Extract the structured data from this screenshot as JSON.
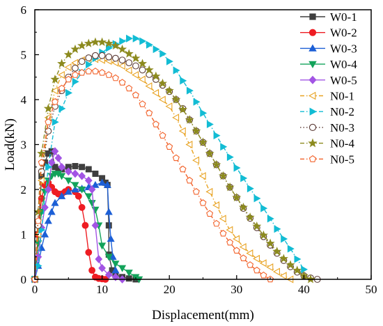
{
  "chart_data": {
    "type": "line",
    "xlabel": "Displacement(mm)",
    "ylabel": "Load(kN)",
    "xlim": [
      0,
      50
    ],
    "ylim": [
      0,
      6
    ],
    "xticks": [
      "0",
      "10",
      "20",
      "30",
      "40",
      "50"
    ],
    "yticks": [
      "0",
      "1",
      "2",
      "3",
      "4",
      "5",
      "6"
    ],
    "grid": false,
    "legend_position": "top-right",
    "series": [
      {
        "name": "W0-1",
        "color": "#3f3f3f",
        "marker": "square",
        "filled": true,
        "dash": "solid",
        "x": [
          0,
          0.5,
          1,
          1.5,
          2,
          2.5,
          3,
          3.5,
          4,
          5,
          6,
          7,
          8,
          9,
          10,
          10.5,
          10.8,
          11,
          11,
          11.5,
          12,
          13,
          14,
          15
        ],
        "y": [
          0,
          1.0,
          2.3,
          2.6,
          2.8,
          2.85,
          2.5,
          2.45,
          2.45,
          2.5,
          2.52,
          2.5,
          2.45,
          2.35,
          2.25,
          2.15,
          2.1,
          1.2,
          0.55,
          0.2,
          0.1,
          0.05,
          0.02,
          0
        ]
      },
      {
        "name": "W0-2",
        "color": "#ee1d23",
        "marker": "circle",
        "filled": true,
        "dash": "solid",
        "x": [
          0,
          0.5,
          1,
          1.5,
          2,
          2.5,
          3,
          3.5,
          4,
          4.5,
          5,
          6,
          6.5,
          7,
          7.5,
          8,
          8.5,
          9,
          9.5,
          10,
          10.5
        ],
        "y": [
          0,
          1.0,
          1.8,
          2.1,
          2.15,
          2.05,
          1.95,
          1.9,
          1.9,
          1.95,
          2.0,
          1.95,
          1.85,
          1.6,
          1.2,
          0.6,
          0.2,
          0.05,
          0.02,
          0.01,
          0
        ]
      },
      {
        "name": "W0-3",
        "color": "#1c5fd6",
        "marker": "triangle-up",
        "filled": true,
        "dash": "solid",
        "x": [
          0,
          0.5,
          1,
          1.5,
          2,
          2.5,
          3,
          4,
          5,
          6,
          7,
          8,
          9,
          10,
          10.8,
          11,
          11.3,
          11.6,
          12
        ],
        "y": [
          0,
          0.3,
          0.7,
          1.0,
          1.3,
          1.5,
          1.7,
          1.85,
          1.95,
          2.0,
          2.02,
          2.05,
          2.1,
          2.15,
          2.1,
          1.5,
          0.9,
          0.5,
          0.2
        ]
      },
      {
        "name": "W0-4",
        "color": "#12a35a",
        "marker": "triangle-down",
        "filled": true,
        "dash": "solid",
        "x": [
          0,
          0.5,
          1,
          1.5,
          2,
          2.5,
          3,
          3.5,
          4,
          5,
          6,
          7,
          8,
          8.5,
          9,
          9.5,
          10,
          11,
          12,
          13,
          14,
          15,
          15.5
        ],
        "y": [
          0,
          0.8,
          1.5,
          1.95,
          2.2,
          2.3,
          2.35,
          2.35,
          2.3,
          2.2,
          2.1,
          2.0,
          1.85,
          1.7,
          1.55,
          1.2,
          0.75,
          0.5,
          0.35,
          0.25,
          0.15,
          0.05,
          0
        ]
      },
      {
        "name": "W0-5",
        "color": "#a254e4",
        "marker": "diamond",
        "filled": true,
        "dash": "solid",
        "x": [
          0,
          0.5,
          1,
          1.5,
          2,
          2.5,
          3,
          3.5,
          4,
          5,
          6,
          7,
          8,
          8.5,
          9,
          9.5,
          10,
          11,
          12,
          13
        ],
        "y": [
          0,
          0.5,
          1.15,
          1.6,
          2.0,
          2.6,
          2.85,
          2.7,
          2.5,
          2.4,
          2.35,
          2.3,
          2.2,
          2.0,
          1.2,
          0.45,
          0.25,
          0.1,
          0.05,
          0
        ]
      },
      {
        "name": "N0-1",
        "color": "#e8a221",
        "marker": "triangle-left",
        "filled": false,
        "dash": "dashdot",
        "x": [
          0,
          0.5,
          1,
          2,
          3,
          4,
          5,
          6,
          7,
          8,
          9,
          10,
          11,
          12,
          13,
          14,
          15,
          16,
          17,
          18,
          19,
          20,
          21,
          22,
          23,
          24,
          25,
          26,
          27,
          28,
          29,
          30,
          31,
          32,
          33,
          34,
          35,
          36,
          37,
          38
        ],
        "y": [
          0,
          1.0,
          2.2,
          3.6,
          4.2,
          4.55,
          4.72,
          4.82,
          4.88,
          4.9,
          4.9,
          4.88,
          4.86,
          4.82,
          4.75,
          4.65,
          4.55,
          4.45,
          4.3,
          4.15,
          4.0,
          3.85,
          3.6,
          3.3,
          3.0,
          2.65,
          2.3,
          1.95,
          1.65,
          1.35,
          1.1,
          0.9,
          0.72,
          0.58,
          0.46,
          0.36,
          0.27,
          0.17,
          0.08,
          0
        ]
      },
      {
        "name": "N0-2",
        "color": "#12bcd4",
        "marker": "triangle-right",
        "filled": true,
        "dash": "dashdot",
        "x": [
          0,
          0.5,
          1,
          2,
          3,
          4,
          5,
          6,
          7,
          8,
          9,
          10,
          11,
          12,
          13,
          14,
          15,
          16,
          17,
          18,
          19,
          20,
          21,
          22,
          23,
          24,
          25,
          26,
          27,
          28,
          29,
          30,
          31,
          32,
          33,
          34,
          35,
          36,
          37,
          38,
          39,
          40
        ],
        "y": [
          0,
          0.3,
          1.1,
          2.5,
          3.5,
          3.8,
          4.15,
          4.4,
          4.6,
          4.78,
          4.92,
          5.05,
          5.15,
          5.24,
          5.3,
          5.36,
          5.36,
          5.3,
          5.22,
          5.12,
          5.02,
          4.85,
          4.65,
          4.42,
          4.2,
          3.95,
          3.7,
          3.45,
          3.2,
          2.95,
          2.72,
          2.48,
          2.25,
          2.02,
          1.8,
          1.58,
          1.35,
          1.12,
          0.9,
          0.68,
          0.45,
          0.22
        ]
      },
      {
        "name": "N0-3",
        "color": "#5a3a35",
        "marker": "circle",
        "filled": false,
        "dash": "dot",
        "x": [
          0,
          0.5,
          1,
          2,
          3,
          4,
          5,
          6,
          7,
          8,
          9,
          10,
          11,
          12,
          13,
          14,
          15,
          16,
          17,
          18,
          19,
          20,
          21,
          22,
          23,
          24,
          25,
          26,
          27,
          28,
          29,
          30,
          31,
          32,
          33,
          34,
          35,
          36,
          37,
          38,
          39,
          40,
          41,
          42
        ],
        "y": [
          0,
          1.2,
          2.4,
          3.3,
          3.85,
          4.2,
          4.5,
          4.7,
          4.85,
          4.93,
          4.98,
          4.98,
          4.95,
          4.92,
          4.88,
          4.82,
          4.75,
          4.66,
          4.56,
          4.45,
          4.32,
          4.18,
          4.0,
          3.8,
          3.55,
          3.3,
          3.05,
          2.8,
          2.55,
          2.3,
          2.05,
          1.82,
          1.58,
          1.36,
          1.15,
          0.95,
          0.76,
          0.58,
          0.42,
          0.28,
          0.16,
          0.08,
          0.03,
          0
        ]
      },
      {
        "name": "N0-4",
        "color": "#8c8a1e",
        "marker": "star",
        "filled": true,
        "dash": "dashdot",
        "x": [
          0,
          0.5,
          1,
          2,
          3,
          4,
          5,
          6,
          7,
          8,
          9,
          10,
          11,
          12,
          13,
          14,
          15,
          16,
          17,
          18,
          19,
          20,
          21,
          22,
          23,
          24,
          25,
          26,
          27,
          28,
          29,
          30,
          31,
          32,
          33,
          34,
          35,
          36,
          37,
          38,
          39,
          40,
          41
        ],
        "y": [
          0,
          1.5,
          2.8,
          3.8,
          4.45,
          4.8,
          5.0,
          5.12,
          5.2,
          5.25,
          5.28,
          5.28,
          5.25,
          5.2,
          5.12,
          5.02,
          4.92,
          4.8,
          4.66,
          4.52,
          4.36,
          4.2,
          4.0,
          3.78,
          3.55,
          3.3,
          3.05,
          2.8,
          2.55,
          2.3,
          2.05,
          1.82,
          1.6,
          1.38,
          1.18,
          0.98,
          0.8,
          0.62,
          0.46,
          0.32,
          0.2,
          0.08,
          0
        ]
      },
      {
        "name": "N0-5",
        "color": "#f2622a",
        "marker": "pentagon",
        "filled": false,
        "dash": "dashdot",
        "x": [
          0,
          0.5,
          1,
          2,
          3,
          4,
          5,
          6,
          7,
          8,
          9,
          10,
          11,
          12,
          13,
          14,
          15,
          16,
          17,
          18,
          19,
          20,
          21,
          22,
          23,
          24,
          25,
          26,
          27,
          28,
          29,
          30,
          31,
          32,
          33,
          34,
          35
        ],
        "y": [
          0,
          1.3,
          2.6,
          3.5,
          3.95,
          4.25,
          4.45,
          4.55,
          4.6,
          4.63,
          4.63,
          4.6,
          4.55,
          4.48,
          4.38,
          4.25,
          4.1,
          3.9,
          3.7,
          3.45,
          3.2,
          2.95,
          2.7,
          2.45,
          2.2,
          1.95,
          1.7,
          1.46,
          1.24,
          1.02,
          0.82,
          0.64,
          0.47,
          0.32,
          0.2,
          0.09,
          0
        ]
      }
    ]
  }
}
